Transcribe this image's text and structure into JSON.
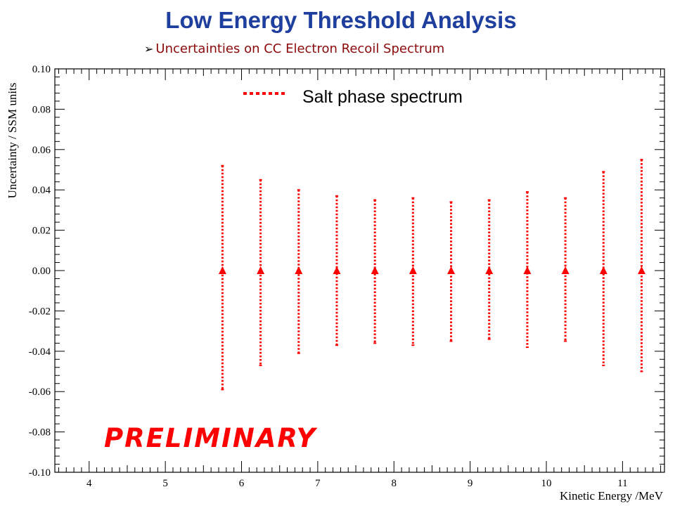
{
  "header": {
    "title": "Low Energy Threshold Analysis",
    "subtitle_bullet": "➢",
    "subtitle": "Uncertainties on CC Electron Recoil Spectrum"
  },
  "stamp_text": "PRELIMINARY",
  "chart_data": {
    "type": "scatter",
    "title": "",
    "xlabel": "Kinetic Energy /MeV",
    "ylabel": "Uncertainty / SSM units",
    "xlim": [
      3.55,
      11.55
    ],
    "ylim": [
      -0.1,
      0.1
    ],
    "x_ticks": [
      4,
      5,
      6,
      7,
      8,
      9,
      10,
      11
    ],
    "y_ticks": [
      -0.1,
      -0.08,
      -0.06,
      -0.04,
      -0.02,
      0.0,
      0.02,
      0.04,
      0.06,
      0.08,
      0.1
    ],
    "y_tick_labels": [
      "-0.10",
      "-0.08",
      "-0.06",
      "-0.04",
      "-0.02",
      "0.00",
      "0.02",
      "0.04",
      "0.06",
      "0.08",
      "0.10"
    ],
    "grid": false,
    "legend": {
      "position": "top-center",
      "entries": [
        "Salt phase spectrum"
      ]
    },
    "series": [
      {
        "name": "Salt phase spectrum",
        "color": "#ff0000",
        "style": "dotted-error-bars",
        "x": [
          5.75,
          6.25,
          6.75,
          7.25,
          7.75,
          8.25,
          8.75,
          9.25,
          9.75,
          10.25,
          10.75,
          11.25
        ],
        "y": [
          0,
          0,
          0,
          0,
          0,
          0,
          0,
          0,
          0,
          0,
          0,
          0
        ],
        "err_plus": [
          0.052,
          0.045,
          0.04,
          0.037,
          0.035,
          0.036,
          0.034,
          0.035,
          0.039,
          0.036,
          0.049,
          0.055
        ],
        "err_minus": [
          0.059,
          0.047,
          0.041,
          0.037,
          0.036,
          0.037,
          0.035,
          0.034,
          0.038,
          0.035,
          0.047,
          0.05
        ]
      }
    ]
  }
}
